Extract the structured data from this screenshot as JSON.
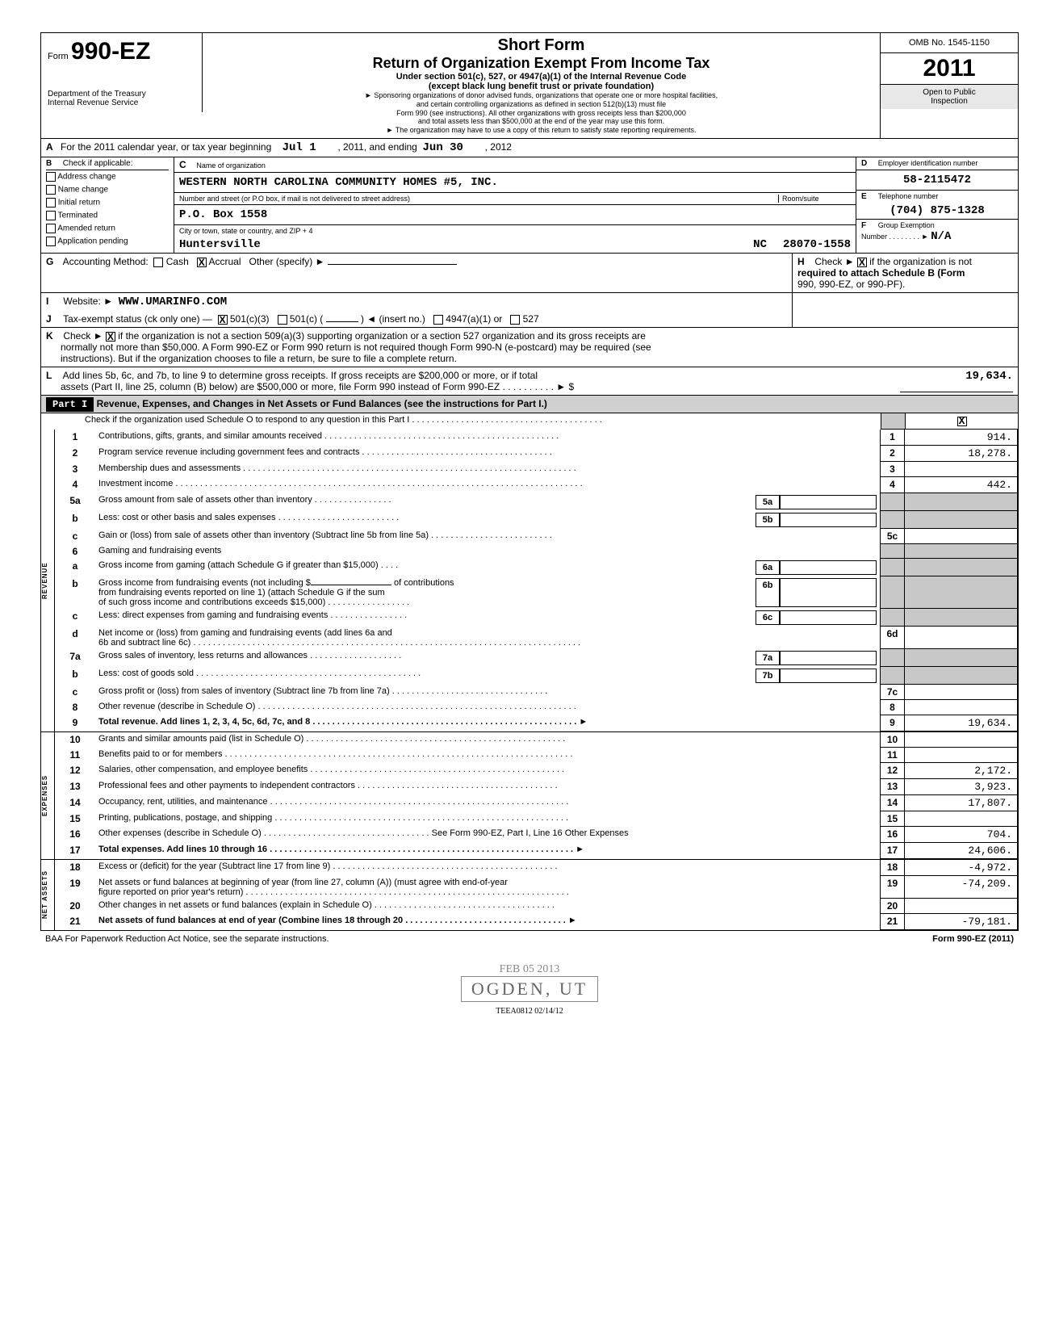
{
  "header": {
    "form_prefix": "Form",
    "form_number": "990-EZ",
    "dept1": "Department of the Treasury",
    "dept2": "Internal Revenue Service",
    "title1": "Short Form",
    "title2": "Return of Organization Exempt From Income Tax",
    "title3": "Under section 501(c), 527, or 4947(a)(1) of the Internal Revenue Code",
    "title4": "(except black lung benefit trust or private foundation)",
    "title5": "► Sponsoring organizations of donor advised funds, organizations that operate one or more hospital facilities,",
    "title6": "and certain controlling organizations as defined in section 512(b)(13) must file",
    "title7": "Form 990 (see instructions). All other organizations with gross receipts less than $200,000",
    "title8": "and total assets less than $500,000 at the end of the year may use this form.",
    "title9": "► The organization may have to use a copy of this return to satisfy state reporting requirements.",
    "omb": "OMB No. 1545-1150",
    "year": "2011",
    "inspection1": "Open to Public",
    "inspection2": "Inspection"
  },
  "rowA": {
    "label": "A",
    "text": "For the 2011 calendar year, or tax year beginning",
    "begin": "Jul 1",
    "mid": ", 2011, and ending",
    "end": "Jun 30",
    "yearEnd": ", 2012"
  },
  "rowB": {
    "label": "B",
    "checkLabel": "Check if applicable:",
    "opts": [
      "Address change",
      "Name change",
      "Initial return",
      "Terminated",
      "Amended return",
      "Application pending"
    ],
    "cLabel": "C",
    "nameLabel": "Name of organization",
    "orgName": "WESTERN NORTH CAROLINA COMMUNITY HOMES #5, INC.",
    "streetLabel": "Number and street (or P.O box, if mail is not delivered to street address)",
    "roomLabel": "Room/suite",
    "street": "P.O. Box 1558",
    "cityLabel": "City or town, state or country, and ZIP + 4",
    "city": "Huntersville",
    "state": "NC",
    "zip": "28070-1558",
    "dLabel": "D",
    "einLabel": "Employer identification number",
    "ein": "58-2115472",
    "eLabel": "E",
    "telLabel": "Telephone number",
    "tel": "(704) 875-1328",
    "fLabel": "F",
    "groupLabel": "Group Exemption",
    "groupLabel2": "Number . . . . . . . . ►",
    "groupVal": "N/A"
  },
  "rowG": {
    "label": "G",
    "text": "Accounting Method:",
    "cash": "Cash",
    "accrual": "Accrual",
    "other": "Other (specify) ►",
    "accrualChecked": "X",
    "hLabel": "H",
    "hText": "Check ►",
    "hChecked": "X",
    "hText2": "if the organization is not",
    "hText3": "required to attach Schedule B (Form",
    "hText4": "990, 990-EZ, or 990-PF)."
  },
  "rowI": {
    "label": "I",
    "text": "Website: ►",
    "val": "WWW.UMARINFO.COM"
  },
  "rowJ": {
    "label": "J",
    "text": "Tax-exempt status (ck only one) —",
    "c3checked": "X",
    "c3": "501(c)(3)",
    "c": "501(c) (",
    "cInsert": ") ◄ (insert no.)",
    "a1": "4947(a)(1) or",
    "527": "527"
  },
  "rowK": {
    "label": "K",
    "checked": "X",
    "text1": "Check ►",
    "text2": "if the organization is not a section 509(a)(3) supporting organization or a section 527 organization and its gross receipts are",
    "text3": "normally not more than $50,000. A Form 990-EZ or Form 990 return is not required though Form 990-N (e-postcard) may be required (see",
    "text4": "instructions). But if the organization chooses to file a return, be sure to file a complete return."
  },
  "rowL": {
    "label": "L",
    "text1": "Add lines 5b, 6c, and 7b, to line 9 to determine gross receipts. If gross receipts are $200,000 or more, or if total",
    "text2": "assets (Part II, line 25, column (B) below) are $500,000 or more, file Form 990 instead of Form 990-EZ . . . . . . . . . . ► $",
    "val": "19,634."
  },
  "part1": {
    "label": "Part I",
    "title": "Revenue, Expenses, and Changes in Net Assets or Fund Balances (see the instructions for Part I.)",
    "check": "Check if the organization used Schedule O to respond to any question in this Part I . . . . . . . . . . . . . . . . . . . . . . . . . . . . . . . . . . . . . . .",
    "checked": "X"
  },
  "revenue": {
    "sideLabel": "REVENUE",
    "lines": [
      {
        "n": "1",
        "d": "Contributions, gifts, grants, and similar amounts received . . . . . . . . . . . . . . . . . . . . . . . . . . . . . . . . . . . . . . . . . . . . . . . .",
        "bn": "1",
        "v": "914."
      },
      {
        "n": "2",
        "d": "Program service revenue including government fees and contracts . . . . . . . . . . . . . . . . . . . . . . . . . . . . . . . . . . . . . . .",
        "bn": "2",
        "v": "18,278."
      },
      {
        "n": "3",
        "d": "Membership dues and assessments . . . . . . . . . . . . . . . . . . . . . . . . . . . . . . . . . . . . . . . . . . . . . . . . . . . . . . . . . . . . . . . . . . . .",
        "bn": "3",
        "v": ""
      },
      {
        "n": "4",
        "d": "Investment income . . . . . . . . . . . . . . . . . . . . . . . . . . . . . . . . . . . . . . . . . . . . . . . . . . . . . . . . . . . . . . . . . . . . . . . . . . . . . . . . . . .",
        "bn": "4",
        "v": "442."
      }
    ],
    "l5a": {
      "n": "5a",
      "d": "Gross amount from sale of assets other than inventory . . . . . . . . . . . . . . . .",
      "bn": "5a"
    },
    "l5b": {
      "n": "b",
      "d": "Less: cost or other basis and sales expenses . . . . . . . . . . . . . . . . . . . . . . . . .",
      "bn": "5b"
    },
    "l5c": {
      "n": "c",
      "d": "Gain or (loss) from sale of assets other than inventory (Subtract line 5b from line 5a) . . . . . . . . . . . . . . . . . . . . . . . . .",
      "bn": "5c",
      "v": ""
    },
    "l6": {
      "n": "6",
      "d": "Gaming and fundraising events"
    },
    "l6a": {
      "n": "a",
      "d": "Gross income from gaming (attach Schedule G if greater than $15,000) . . . .",
      "bn": "6a"
    },
    "l6b": {
      "n": "b",
      "d": "Gross income from fundraising events (not including $",
      "d2": "of contributions",
      "d3": "from fundraising events reported on line 1) (attach Schedule G if the sum",
      "d4": "of such gross income and contributions exceeds $15,000) . . . . . . . . . . . . . . . . .",
      "bn": "6b"
    },
    "l6c": {
      "n": "c",
      "d": "Less: direct expenses from gaming and fundraising events . . . . . . . . . . . . . . . .",
      "bn": "6c"
    },
    "l6d": {
      "n": "d",
      "d": "Net income or (loss) from gaming and fundraising events (add lines 6a and",
      "d2": "6b and subtract line 6c) . . . . . . . . . . . . . . . . . . . . . . . . . . . . . . . . . . . . . . . . . . . . . . . . . . . . . . . . . . . . . . . . . . . . . . . . . . . . . . .",
      "bn": "6d",
      "v": ""
    },
    "l7a": {
      "n": "7a",
      "d": "Gross sales of inventory, less returns and allowances . . . . . . . . . . . . . . . . . . .",
      "bn": "7a"
    },
    "l7b": {
      "n": "b",
      "d": "Less: cost of goods sold . . . . . . . . . . . . . . . . . . . . . . . . . . . . . . . . . . . . . . . . . . . . . .",
      "bn": "7b"
    },
    "l7c": {
      "n": "c",
      "d": "Gross profit or (loss) from sales of inventory (Subtract line 7b from line 7a) . . . . . . . . . . . . . . . . . . . . . . . . . . . . . . . .",
      "bn": "7c",
      "v": ""
    },
    "l8": {
      "n": "8",
      "d": "Other revenue (describe in Schedule O) . . . . . . . . . . . . . . . . . . . . . . . . . . . . . . . . . . . . . . . . . . . . . . . . . . . . . . . . . . . . . . . . .",
      "bn": "8",
      "v": ""
    },
    "l9": {
      "n": "9",
      "d": "Total revenue. Add lines 1, 2, 3, 4, 5c, 6d, 7c, and 8 . . . . . . . . . . . . . . . . . . . . . . . . . . . . . . . . . . . . . . . . . . . . . . . . . . . . . . ►",
      "bn": "9",
      "v": "19,634."
    }
  },
  "expenses": {
    "sideLabel": "EXPENSES",
    "lines": [
      {
        "n": "10",
        "d": "Grants and similar amounts paid (list in Schedule O) . . . . . . . . . . . . . . . . . . . . . . . . . . . . . . . . . . . . . . . . . . . . . . . . . . . . .",
        "bn": "10",
        "v": ""
      },
      {
        "n": "11",
        "d": "Benefits paid to or for members . . . . . . . . . . . . . . . . . . . . . . . . . . . . . . . . . . . . . . . . . . . . . . . . . . . . . . . . . . . . . . . . . . . . . . .",
        "bn": "11",
        "v": ""
      },
      {
        "n": "12",
        "d": "Salaries, other compensation, and employee benefits . . . . . . . . . . . . . . . . . . . . . . . . . . . . . . . . . . . . . . . . . . . . . . . . . . . .",
        "bn": "12",
        "v": "2,172."
      },
      {
        "n": "13",
        "d": "Professional fees and other payments to independent contractors . . . . . . . . . . . . . . . . . . . . . . . . . . . . . . . . . . . . . . . . .",
        "bn": "13",
        "v": "3,923."
      },
      {
        "n": "14",
        "d": "Occupancy, rent, utilities, and maintenance . . . . . . . . . . . . . . . . . . . . . . . . . . . . . . . . . . . . . . . . . . . . . . . . . . . . . . . . . . . . .",
        "bn": "14",
        "v": "17,807."
      },
      {
        "n": "15",
        "d": "Printing, publications, postage, and shipping . . . . . . . . . . . . . . . . . . . . . . . . . . . . . . . . . . . . . . . . . . . . . . . . . . . . . . . . . . . .",
        "bn": "15",
        "v": ""
      },
      {
        "n": "16",
        "d": "Other expenses (describe in Schedule O) . . . . . . . . . . . . . . . . . . . . . . . . . . . . . . . . . . See Form 990-EZ, Part I, Line 16 Other Expenses",
        "bn": "16",
        "v": "704."
      },
      {
        "n": "17",
        "d": "Total expenses. Add lines 10 through 16 . . . . . . . . . . . . . . . . . . . . . . . . . . . . . . . . . . . . . . . . . . . . . . . . . . . . . . . . . . . . . . ►",
        "bn": "17",
        "v": "24,606."
      }
    ]
  },
  "netassets": {
    "sideLabel": "NET ASSETS",
    "lines": [
      {
        "n": "18",
        "d": "Excess or (deficit) for the year (Subtract line 17 from line 9) . . . . . . . . . . . . . . . . . . . . . . . . . . . . . . . . . . . . . . . . . . . . . .",
        "bn": "18",
        "v": "-4,972."
      },
      {
        "n": "19",
        "d": "Net assets or fund balances at beginning of year (from line 27, column (A)) (must agree with end-of-year",
        "d2": "figure reported on prior year's return) . . . . . . . . . . . . . . . . . . . . . . . . . . . . . . . . . . . . . . . . . . . . . . . . . . . . . . . . . . . . . . . . . .",
        "bn": "19",
        "v": "-74,209."
      },
      {
        "n": "20",
        "d": "Other changes in net assets or fund balances (explain in Schedule O) . . . . . . . . . . . . . . . . . . . . . . . . . . . . . . . . . . . . .",
        "bn": "20",
        "v": ""
      },
      {
        "n": "21",
        "d": "Net assets of fund balances at end of year (Combine lines 18 through 20 . . . . . . . . . . . . . . . . . . . . . . . . . . . . . . . . . ►",
        "bn": "21",
        "v": "-79,181."
      }
    ]
  },
  "footer": {
    "left": "BAA  For Paperwork Reduction Act Notice, see the separate instructions.",
    "right": "Form 990-EZ (2011)",
    "stampDate": "FEB 05 2013",
    "stampLoc": "OGDEN, UT",
    "teea": "TEEA0812  02/14/12"
  }
}
